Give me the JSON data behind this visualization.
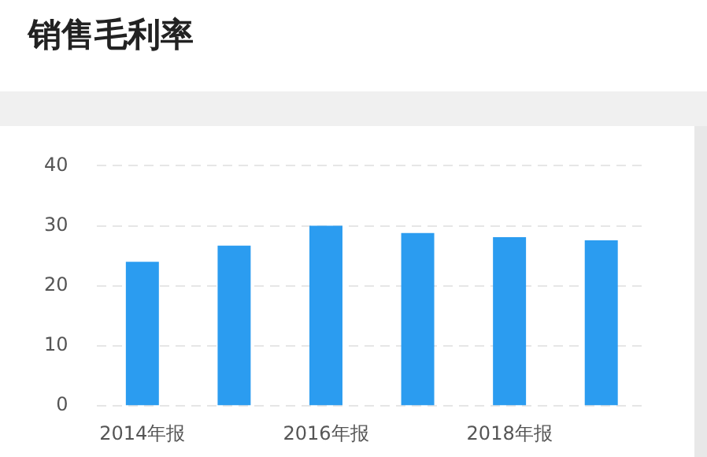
{
  "chart_data": {
    "type": "bar",
    "title": "销售毛利率",
    "categories": [
      "2014年报",
      null,
      "2016年报",
      null,
      "2018年报",
      null
    ],
    "values": [
      24.0,
      26.7,
      30.0,
      28.8,
      28.1,
      27.6
    ],
    "color": "#2b9cf0",
    "ylim": [
      0,
      40
    ],
    "yticks": [
      0,
      10,
      20,
      30,
      40
    ],
    "grid": "y",
    "legend": false
  }
}
